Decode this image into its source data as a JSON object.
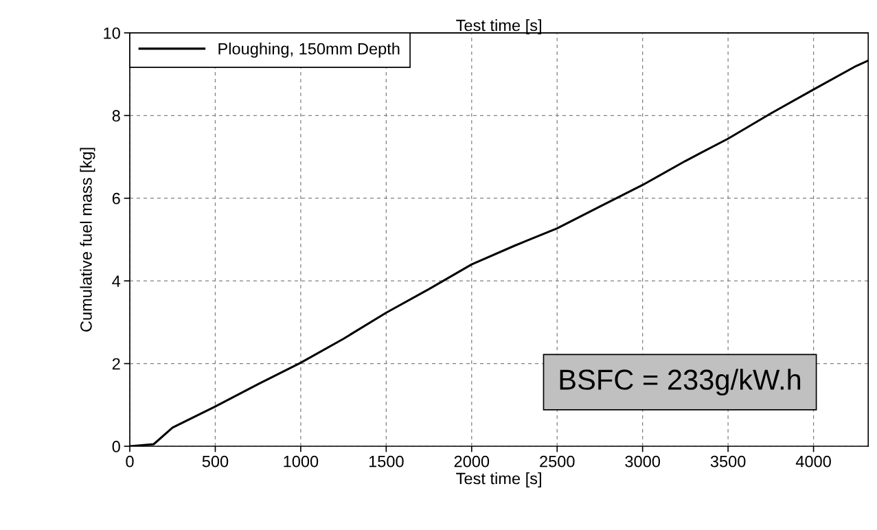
{
  "chart_data": {
    "type": "line",
    "xlabel": "Test time [s]",
    "x2label": "Test time [s]",
    "ylabel": "Cumulative fuel mass [kg]",
    "x": [
      0,
      140,
      250,
      500,
      750,
      1000,
      1250,
      1500,
      1750,
      2000,
      2250,
      2500,
      2750,
      3000,
      3250,
      3500,
      3750,
      4000,
      4250,
      4320
    ],
    "series": [
      {
        "name": "Ploughing, 150mm Depth",
        "color": "#000000",
        "values": [
          0,
          0.05,
          0.45,
          0.96,
          1.5,
          2.02,
          2.6,
          3.23,
          3.8,
          4.4,
          4.85,
          5.27,
          5.8,
          6.32,
          6.9,
          7.44,
          8.05,
          8.63,
          9.2,
          9.33
        ]
      }
    ],
    "xlim": [
      0,
      4320
    ],
    "xticks": [
      0,
      500,
      1000,
      1500,
      2000,
      2500,
      3000,
      3500,
      4000
    ],
    "ylim": [
      0,
      10
    ],
    "yticks": [
      0,
      2,
      4,
      6,
      8,
      10
    ],
    "grid": true,
    "legend": "top left",
    "line_style": "solid",
    "marker": "none",
    "annotations": [
      "BSFC = 233g/kW.h"
    ]
  }
}
